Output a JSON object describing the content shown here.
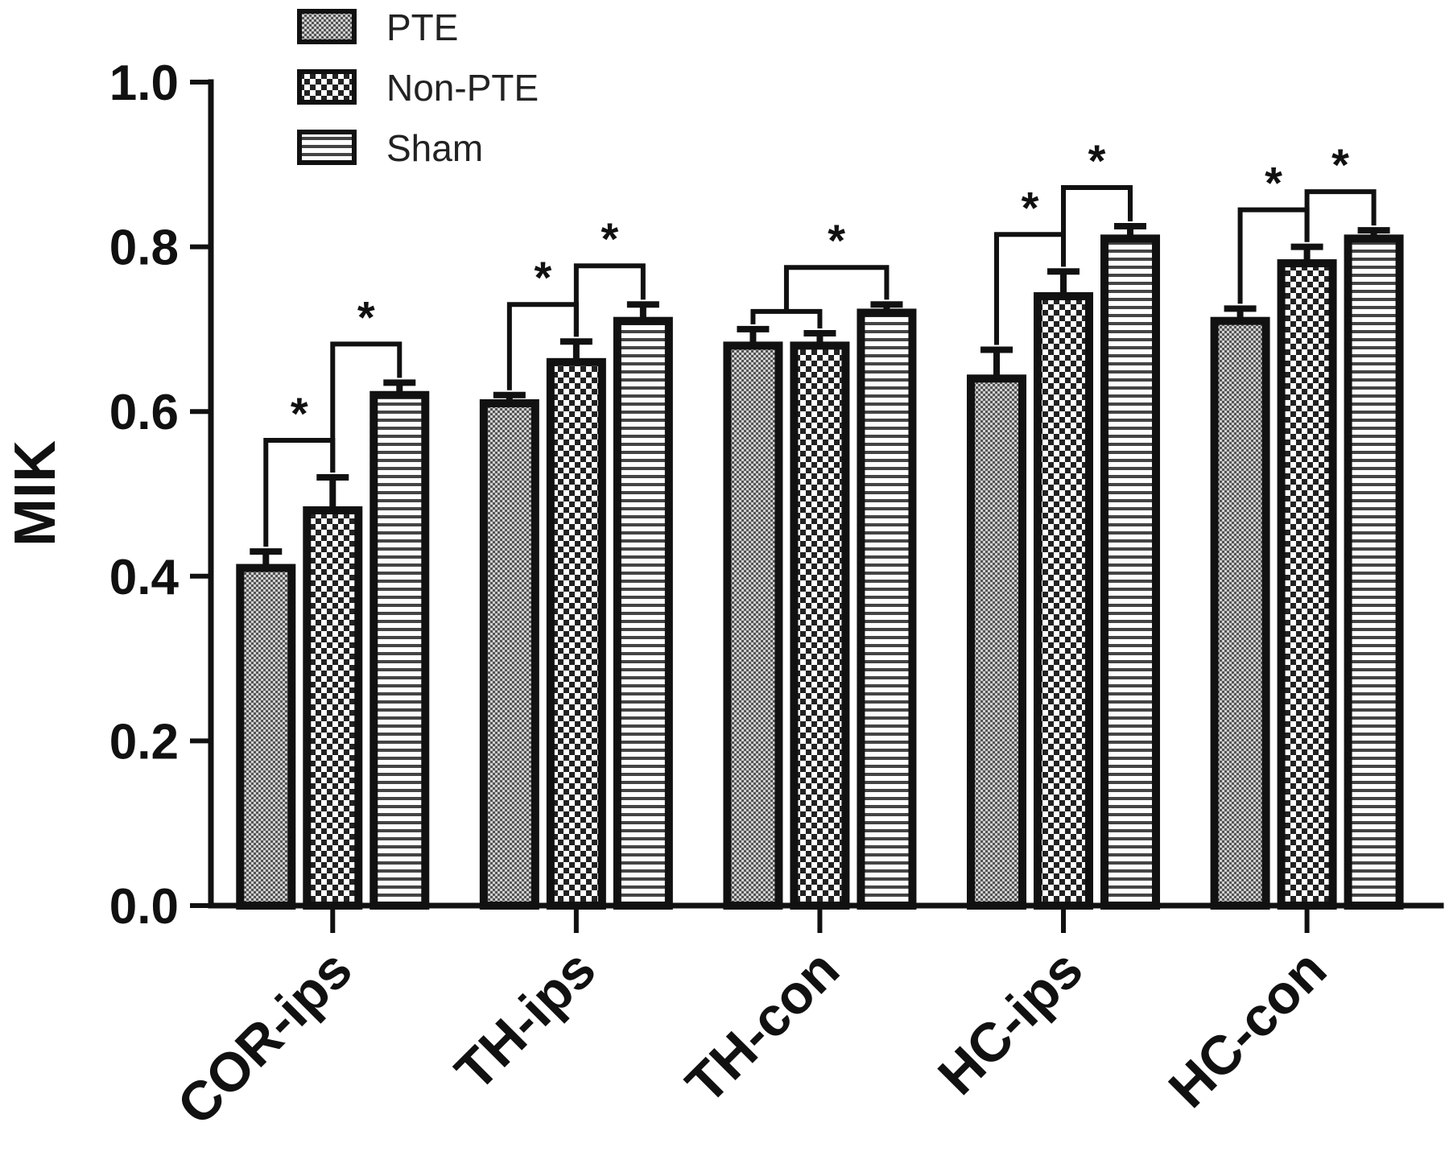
{
  "chart_data": {
    "type": "bar",
    "ylabel": "MIK",
    "xlabel": "",
    "ylim": [
      0,
      1.0
    ],
    "yticks": [
      "0.0",
      "0.2",
      "0.4",
      "0.6",
      "0.8",
      "1.0"
    ],
    "categories": [
      "COR-ips",
      "TH-ips",
      "TH-con",
      "HC-ips",
      "HC-con"
    ],
    "series": [
      {
        "name": "PTE",
        "values": [
          0.41,
          0.61,
          0.68,
          0.64,
          0.71
        ],
        "errors": [
          0.02,
          0.01,
          0.02,
          0.035,
          0.015
        ],
        "pattern": "fine-dots"
      },
      {
        "name": "Non-PTE",
        "values": [
          0.48,
          0.66,
          0.68,
          0.74,
          0.78
        ],
        "errors": [
          0.04,
          0.025,
          0.015,
          0.03,
          0.02
        ],
        "pattern": "checker"
      },
      {
        "name": "Sham",
        "values": [
          0.62,
          0.71,
          0.72,
          0.81,
          0.81
        ],
        "errors": [
          0.015,
          0.02,
          0.01,
          0.015,
          0.01
        ],
        "pattern": "horizontal-lines"
      }
    ],
    "significance": [
      {
        "category": 0,
        "from": 0,
        "to": 1,
        "label": "*"
      },
      {
        "category": 0,
        "from": 1,
        "to": 2,
        "label": "*"
      },
      {
        "category": 1,
        "from": 0,
        "to": 1,
        "label": "*"
      },
      {
        "category": 1,
        "from": 1,
        "to": 2,
        "label": "*"
      },
      {
        "category": 2,
        "from": "0-1",
        "to": 2,
        "label": "*"
      },
      {
        "category": 3,
        "from": 0,
        "to": 1,
        "label": "*"
      },
      {
        "category": 3,
        "from": 1,
        "to": 2,
        "label": "*"
      },
      {
        "category": 4,
        "from": 0,
        "to": 1,
        "label": "*"
      },
      {
        "category": 4,
        "from": 1,
        "to": 2,
        "label": "*"
      }
    ],
    "legend": {
      "placement": "top-left",
      "entries": [
        "PTE",
        "Non-PTE",
        "Sham"
      ]
    },
    "grid": false
  }
}
